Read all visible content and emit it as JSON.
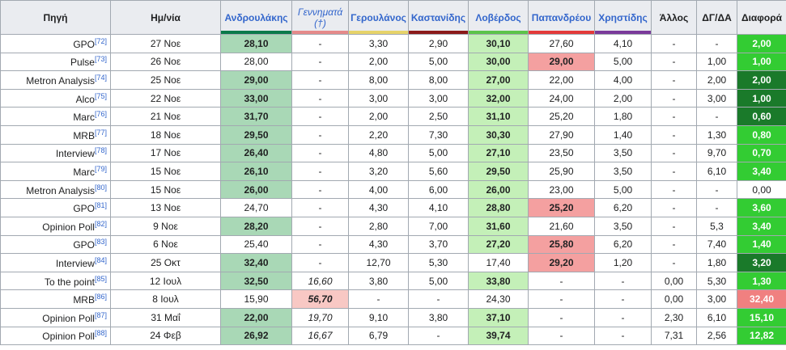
{
  "columns": [
    {
      "key": "source",
      "label": "Πηγή",
      "link": false
    },
    {
      "key": "date",
      "label": "Ημ/νία",
      "link": false
    },
    {
      "key": "androulakis",
      "label": "Ανδρουλάκης",
      "link": true,
      "bar": "#0a7a4a"
    },
    {
      "key": "gennimata",
      "label": "Γεννηματά",
      "sub": "(†)",
      "link": true,
      "italic": true,
      "bar": "#e58a8a"
    },
    {
      "key": "geroulanos",
      "label": "Γερουλάνος",
      "link": true,
      "bar": "#e6d36a"
    },
    {
      "key": "kastanidis",
      "label": "Καστανίδης",
      "link": true,
      "bar": "#8b1a1a"
    },
    {
      "key": "loverdos",
      "label": "Λοβέρδος",
      "link": true,
      "bar": "#5cc44a"
    },
    {
      "key": "papandreou",
      "label": "Παπανδρέου",
      "link": true,
      "bar": "#e33a3a"
    },
    {
      "key": "christidis",
      "label": "Χρηστίδης",
      "link": true,
      "bar": "#7a3a9a"
    },
    {
      "key": "allos",
      "label": "Άλλος",
      "link": false
    },
    {
      "key": "dgda",
      "label": "ΔΓ/ΔΑ",
      "link": false
    },
    {
      "key": "diafora",
      "label": "Διαφορά",
      "link": false
    }
  ],
  "colors": {
    "androulakis_lead": "#a9d8b6",
    "loverdos_lead": "#c4f0b8",
    "papandreou_hl": "#f4a0a0",
    "gennimata_hl": "#f8c8c4",
    "diff_bright": "#33cc33",
    "diff_dark": "#1a7a2a",
    "diff_red": "#f08080"
  },
  "rows": [
    {
      "source": "GPO",
      "ref": "[72]",
      "date": "27 Νοε",
      "v": [
        "28,10",
        "-",
        "3,30",
        "2,90",
        "30,10",
        "27,60",
        "4,10",
        "-",
        "-"
      ],
      "diff": "2,00",
      "hl": {
        "loverdos": 1,
        "androulakis": 1
      },
      "dc": "diff_bright",
      "bold": [
        0,
        4
      ]
    },
    {
      "source": "Pulse",
      "ref": "[73]",
      "date": "26 Νοε",
      "v": [
        "28,00",
        "-",
        "2,00",
        "5,00",
        "30,00",
        "29,00",
        "5,00",
        "-",
        "1,00"
      ],
      "diff": "1,00",
      "hl": {
        "loverdos": 1,
        "papandreou": 1
      },
      "dc": "diff_bright",
      "bold": [
        4,
        5
      ]
    },
    {
      "source": "Metron Analysis",
      "ref": "[74]",
      "date": "25 Νοε",
      "v": [
        "29,00",
        "-",
        "8,00",
        "8,00",
        "27,00",
        "22,00",
        "4,00",
        "-",
        "2,00"
      ],
      "diff": "2,00",
      "hl": {
        "androulakis": 1,
        "loverdos": 1
      },
      "dc": "diff_dark",
      "bold": [
        0,
        4
      ]
    },
    {
      "source": "Alco",
      "ref": "[75]",
      "date": "22 Νοε",
      "v": [
        "33,00",
        "-",
        "3,00",
        "3,00",
        "32,00",
        "24,00",
        "2,00",
        "-",
        "3,00"
      ],
      "diff": "1,00",
      "hl": {
        "androulakis": 1,
        "loverdos": 1
      },
      "dc": "diff_dark",
      "bold": [
        0,
        4
      ]
    },
    {
      "source": "Marc",
      "ref": "[76]",
      "date": "21 Νοε",
      "v": [
        "31,70",
        "-",
        "2,00",
        "2,50",
        "31,10",
        "25,20",
        "1,80",
        "-",
        "-"
      ],
      "diff": "0,60",
      "hl": {
        "androulakis": 1,
        "loverdos": 1
      },
      "dc": "diff_dark",
      "bold": [
        0,
        4
      ]
    },
    {
      "source": "MRB",
      "ref": "[77]",
      "date": "18 Νοε",
      "v": [
        "29,50",
        "-",
        "2,20",
        "7,30",
        "30,30",
        "27,90",
        "1,40",
        "-",
        "1,30"
      ],
      "diff": "0,80",
      "hl": {
        "androulakis": 1,
        "loverdos": 1
      },
      "dc": "diff_bright",
      "bold": [
        0,
        4
      ]
    },
    {
      "source": "Interview",
      "ref": "[78]",
      "date": "17 Νοε",
      "v": [
        "26,40",
        "-",
        "4,80",
        "5,00",
        "27,10",
        "23,50",
        "3,50",
        "-",
        "9,70"
      ],
      "diff": "0,70",
      "hl": {
        "androulakis": 1,
        "loverdos": 1
      },
      "dc": "diff_bright",
      "bold": [
        0,
        4
      ]
    },
    {
      "source": "Marc",
      "ref": "[79]",
      "date": "15 Νοε",
      "v": [
        "26,10",
        "-",
        "3,20",
        "5,60",
        "29,50",
        "25,90",
        "3,50",
        "-",
        "6,10"
      ],
      "diff": "3,40",
      "hl": {
        "androulakis": 1,
        "loverdos": 1
      },
      "dc": "diff_bright",
      "bold": [
        0,
        4
      ]
    },
    {
      "source": "Metron Analysis",
      "ref": "[80]",
      "date": "15 Νοε",
      "v": [
        "26,00",
        "-",
        "4,00",
        "6,00",
        "26,00",
        "23,00",
        "5,00",
        "-",
        "-"
      ],
      "diff": "0,00",
      "hl": {
        "androulakis": 1,
        "loverdos": 1
      },
      "dc": "",
      "bold": [
        0,
        4
      ]
    },
    {
      "source": "GPO",
      "ref": "[81]",
      "date": "13 Νοε",
      "v": [
        "24,70",
        "-",
        "4,30",
        "4,10",
        "28,80",
        "25,20",
        "6,20",
        "-",
        "-"
      ],
      "diff": "3,60",
      "hl": {
        "loverdos": 1,
        "papandreou": 1
      },
      "dc": "diff_bright",
      "bold": [
        4,
        5
      ]
    },
    {
      "source": "Opinion Poll",
      "ref": "[82]",
      "date": "9 Νοε",
      "v": [
        "28,20",
        "-",
        "2,80",
        "7,00",
        "31,60",
        "21,60",
        "3,50",
        "-",
        "5,3"
      ],
      "diff": "3,40",
      "hl": {
        "androulakis": 1,
        "loverdos": 1
      },
      "dc": "diff_bright",
      "bold": [
        0,
        4
      ]
    },
    {
      "source": "GPO",
      "ref": "[83]",
      "date": "6 Νοε",
      "v": [
        "25,40",
        "-",
        "4,30",
        "3,70",
        "27,20",
        "25,80",
        "6,20",
        "-",
        "7,40"
      ],
      "diff": "1,40",
      "hl": {
        "loverdos": 1,
        "papandreou": 1
      },
      "dc": "diff_bright",
      "bold": [
        4,
        5
      ]
    },
    {
      "source": "Interview",
      "ref": "[84]",
      "date": "25 Οκτ",
      "v": [
        "32,40",
        "-",
        "12,70",
        "5,30",
        "17,40",
        "29,20",
        "1,20",
        "-",
        "1,80"
      ],
      "diff": "3,20",
      "hl": {
        "androulakis": 1,
        "papandreou": 1
      },
      "dc": "diff_dark",
      "bold": [
        0,
        5
      ]
    },
    {
      "source": "To the point",
      "ref": "[85]",
      "date": "12 Ιουλ",
      "v": [
        "32,50",
        "16,60",
        "3,80",
        "5,00",
        "33,80",
        "-",
        "-",
        "0,00",
        "5,30"
      ],
      "diff": "1,30",
      "hl": {
        "androulakis": 1,
        "loverdos": 1
      },
      "dc": "diff_bright",
      "bold": [
        0,
        4
      ]
    },
    {
      "source": "MRB",
      "ref": "[86]",
      "date": "8 Ιουλ",
      "v": [
        "15,90",
        "56,70",
        "-",
        "-",
        "24,30",
        "-",
        "-",
        "0,00",
        "3,00"
      ],
      "diff": "32,40",
      "hl": {
        "gennimata": 1
      },
      "dc": "diff_red",
      "bold": [
        1
      ]
    },
    {
      "source": "Opinion Poll",
      "ref": "[87]",
      "date": "31 Μαΐ",
      "v": [
        "22,00",
        "19,70",
        "9,10",
        "3,80",
        "37,10",
        "-",
        "-",
        "2,30",
        "6,10"
      ],
      "diff": "15,10",
      "hl": {
        "androulakis": 1,
        "loverdos": 1
      },
      "dc": "diff_bright",
      "bold": [
        0,
        4
      ]
    },
    {
      "source": "Opinion Poll",
      "ref": "[88]",
      "date": "24 Φεβ",
      "v": [
        "26,92",
        "16,67",
        "6,79",
        "-",
        "39,74",
        "-",
        "-",
        "7,31",
        "2,56"
      ],
      "diff": "12,82",
      "hl": {
        "androulakis": 1,
        "loverdos": 1
      },
      "dc": "diff_bright",
      "bold": [
        0,
        4
      ]
    }
  ]
}
